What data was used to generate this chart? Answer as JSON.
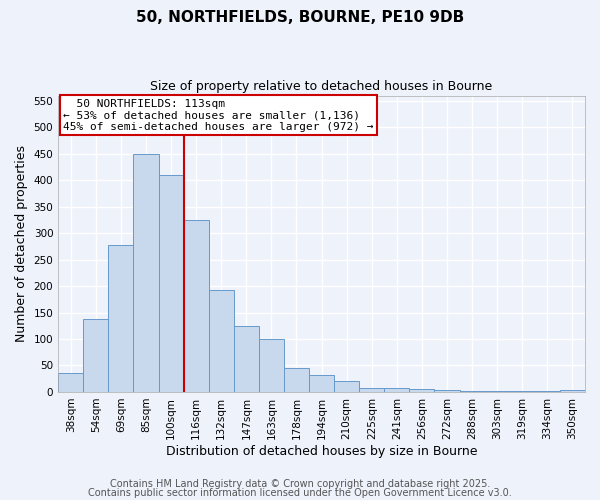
{
  "title": "50, NORTHFIELDS, BOURNE, PE10 9DB",
  "subtitle": "Size of property relative to detached houses in Bourne",
  "xlabel": "Distribution of detached houses by size in Bourne",
  "ylabel": "Number of detached properties",
  "bar_labels": [
    "38sqm",
    "54sqm",
    "69sqm",
    "85sqm",
    "100sqm",
    "116sqm",
    "132sqm",
    "147sqm",
    "163sqm",
    "178sqm",
    "194sqm",
    "210sqm",
    "225sqm",
    "241sqm",
    "256sqm",
    "272sqm",
    "288sqm",
    "303sqm",
    "319sqm",
    "334sqm",
    "350sqm"
  ],
  "bar_values": [
    35,
    137,
    278,
    450,
    410,
    325,
    192,
    125,
    100,
    46,
    32,
    20,
    8,
    8,
    5,
    3,
    2,
    2,
    1,
    1,
    3
  ],
  "bar_color": "#c8d9ee",
  "bar_edge_color": "#6699cc",
  "vline_x_index": 5,
  "vline_color": "#cc0000",
  "annotation_title": "50 NORTHFIELDS: 113sqm",
  "annotation_line1": "← 53% of detached houses are smaller (1,136)",
  "annotation_line2": "45% of semi-detached houses are larger (972) →",
  "annotation_box_color": "#ffffff",
  "annotation_box_edge": "#cc0000",
  "ylim": [
    0,
    560
  ],
  "yticks": [
    0,
    50,
    100,
    150,
    200,
    250,
    300,
    350,
    400,
    450,
    500,
    550
  ],
  "footer1": "Contains HM Land Registry data © Crown copyright and database right 2025.",
  "footer2": "Contains public sector information licensed under the Open Government Licence v3.0.",
  "bg_color": "#eef2fb",
  "grid_color": "#ffffff",
  "title_fontsize": 11,
  "subtitle_fontsize": 9,
  "axis_label_fontsize": 9,
  "tick_fontsize": 7.5,
  "annotation_fontsize": 8,
  "footer_fontsize": 7
}
